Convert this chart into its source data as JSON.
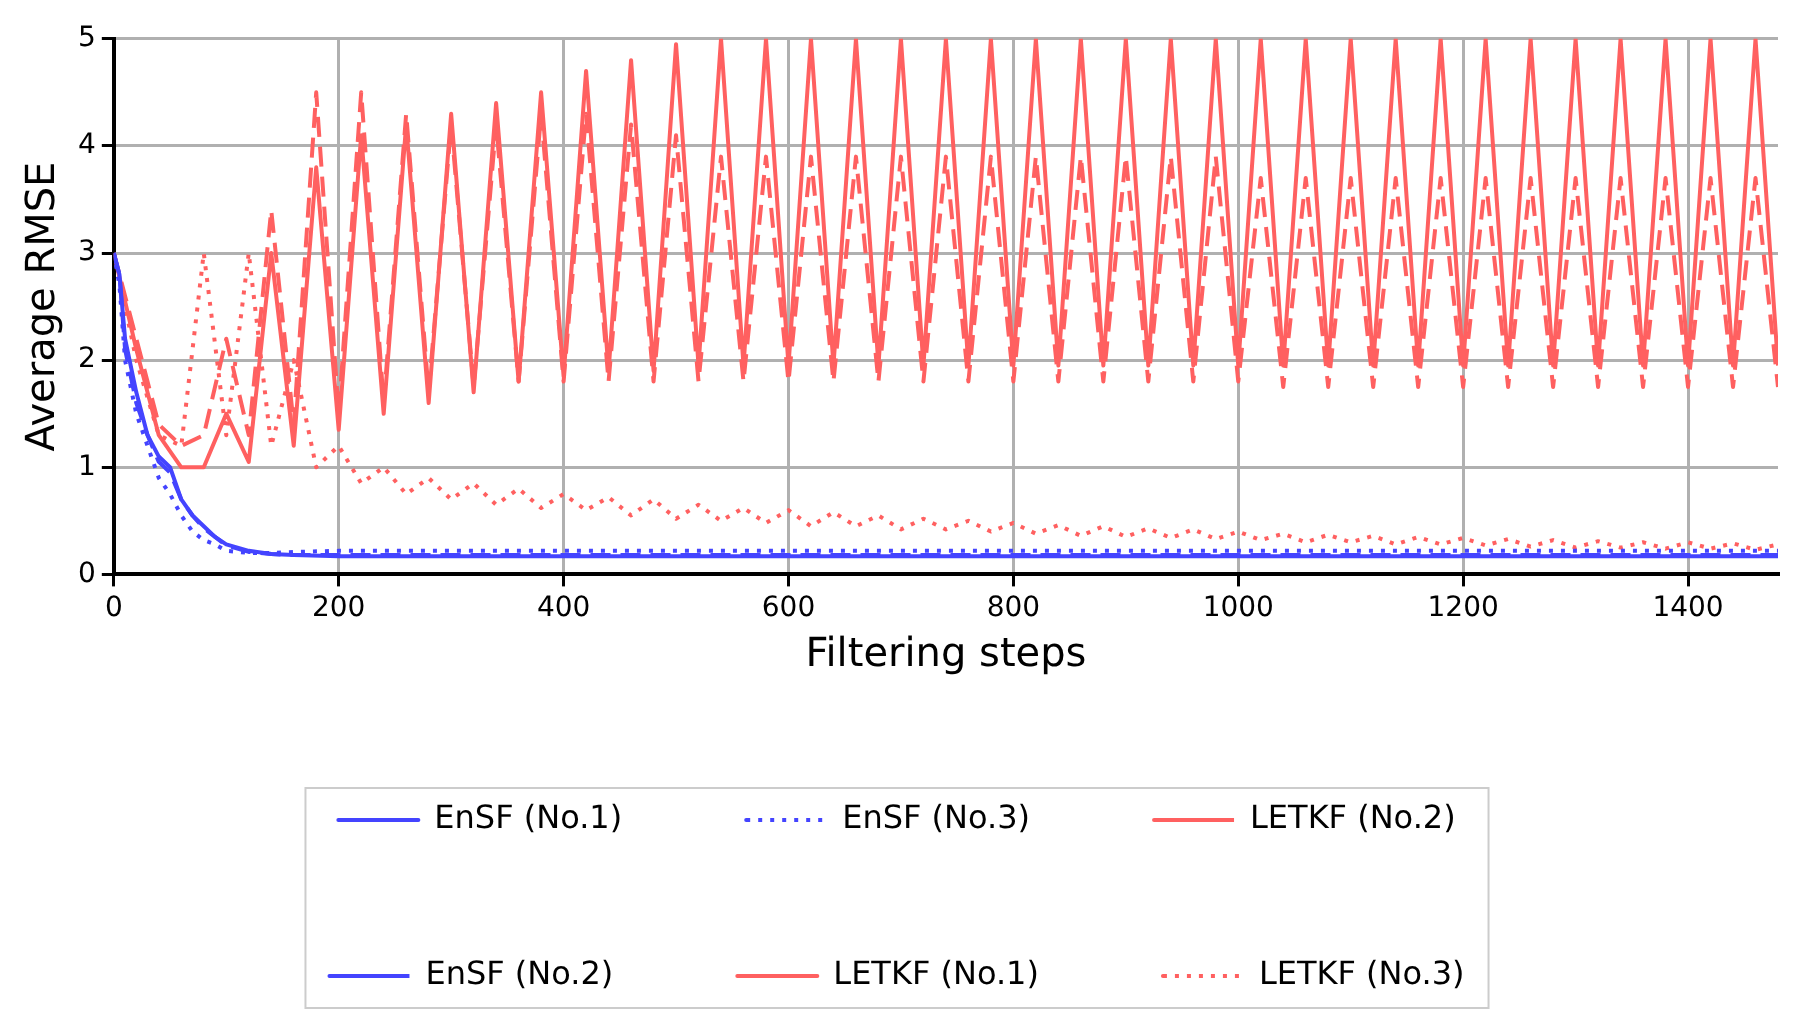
{
  "chart_data": {
    "type": "line",
    "xlabel": "Filtering steps",
    "ylabel": "Average RMSE",
    "x": [
      0,
      20,
      40,
      60,
      80,
      100,
      120,
      140,
      160,
      180,
      200,
      220,
      240,
      260,
      280,
      300,
      320,
      340,
      360,
      380,
      400,
      420,
      440,
      460,
      480,
      500,
      520,
      540,
      560,
      580,
      600,
      620,
      640,
      660,
      680,
      700,
      720,
      740,
      760,
      780,
      800,
      820,
      840,
      860,
      880,
      900,
      920,
      940,
      960,
      980,
      1000,
      1020,
      1040,
      1060,
      1080,
      1100,
      1120,
      1140,
      1160,
      1180,
      1200,
      1220,
      1240,
      1260,
      1280,
      1300,
      1320,
      1340,
      1360,
      1380,
      1400,
      1420,
      1440,
      1460,
      1480
    ],
    "xlim": [
      0,
      1480
    ],
    "xticks": [
      0,
      200,
      400,
      600,
      800,
      1000,
      1200,
      1400
    ],
    "ylim": [
      0,
      5
    ],
    "yticks": [
      0,
      1,
      2,
      3,
      4,
      5
    ],
    "grid": true,
    "legend": "bottom",
    "marker": "none",
    "series": [
      {
        "name": "EnSF (No.1)",
        "color": "#4444ff",
        "line_style": "solid",
        "x": [
          0,
          5,
          10,
          20,
          30,
          40,
          50,
          60,
          70,
          80,
          90,
          100,
          120,
          140,
          160,
          200,
          300,
          400,
          500,
          600,
          700,
          800,
          900,
          1000,
          1100,
          1200,
          1300,
          1400,
          1480
        ],
        "values": [
          3.0,
          2.8,
          2.2,
          1.7,
          1.3,
          1.1,
          1.0,
          0.7,
          0.55,
          0.45,
          0.35,
          0.28,
          0.22,
          0.19,
          0.18,
          0.17,
          0.17,
          0.17,
          0.17,
          0.17,
          0.17,
          0.17,
          0.17,
          0.17,
          0.17,
          0.17,
          0.17,
          0.17,
          0.17
        ]
      },
      {
        "name": "EnSF (No.2)",
        "color": "#4444ff",
        "line_style": "dashed",
        "x": [
          0,
          5,
          10,
          20,
          30,
          40,
          50,
          60,
          70,
          80,
          90,
          100,
          120,
          140,
          160,
          200,
          300,
          400,
          500,
          600,
          700,
          800,
          900,
          1000,
          1100,
          1200,
          1300,
          1400,
          1480
        ],
        "values": [
          3.0,
          2.8,
          2.1,
          1.6,
          1.3,
          1.05,
          0.95,
          0.7,
          0.55,
          0.43,
          0.35,
          0.27,
          0.21,
          0.19,
          0.18,
          0.18,
          0.18,
          0.18,
          0.18,
          0.18,
          0.18,
          0.18,
          0.18,
          0.18,
          0.18,
          0.18,
          0.18,
          0.18,
          0.18
        ]
      },
      {
        "name": "EnSF (No.3)",
        "color": "#4444ff",
        "line_style": "dotted",
        "x": [
          0,
          5,
          10,
          20,
          30,
          40,
          50,
          60,
          70,
          80,
          90,
          100,
          120,
          140,
          160,
          200,
          300,
          400,
          500,
          600,
          700,
          800,
          900,
          1000,
          1100,
          1200,
          1300,
          1400,
          1480
        ],
        "values": [
          3.0,
          2.7,
          2.0,
          1.5,
          1.2,
          0.9,
          0.75,
          0.55,
          0.4,
          0.32,
          0.28,
          0.22,
          0.2,
          0.2,
          0.21,
          0.22,
          0.22,
          0.22,
          0.22,
          0.22,
          0.22,
          0.22,
          0.22,
          0.22,
          0.22,
          0.22,
          0.22,
          0.22,
          0.22
        ]
      },
      {
        "name": "LETKF (No.1)",
        "color": "#ff6060",
        "line_style": "solid",
        "values": [
          3.0,
          2.1,
          1.3,
          1.0,
          1.0,
          1.5,
          1.05,
          3.0,
          1.2,
          3.8,
          1.35,
          4.1,
          1.5,
          4.2,
          1.6,
          4.3,
          1.7,
          4.4,
          1.8,
          4.5,
          1.85,
          4.7,
          1.9,
          4.8,
          1.9,
          4.95,
          1.95,
          5,
          1.95,
          5,
          1.95,
          5,
          1.95,
          5,
          1.95,
          5,
          1.95,
          5,
          1.95,
          5,
          1.95,
          5,
          1.95,
          5,
          1.95,
          5,
          1.95,
          5,
          1.95,
          5,
          1.95,
          5,
          1.95,
          5,
          1.95,
          5,
          1.95,
          5,
          1.95,
          5,
          1.95,
          5,
          1.95,
          5,
          1.95,
          5,
          1.95,
          5,
          1.95,
          5,
          1.95,
          5,
          1.95,
          5,
          1.95
        ]
      },
      {
        "name": "LETKF (No.2)",
        "color": "#ff6060",
        "line_style": "dashed",
        "values": [
          3.0,
          2.2,
          1.4,
          1.2,
          1.3,
          2.2,
          1.3,
          3.4,
          1.4,
          4.5,
          1.5,
          4.5,
          1.6,
          4.3,
          1.7,
          4.2,
          1.75,
          4.2,
          1.8,
          4.3,
          1.8,
          4.3,
          1.8,
          4.2,
          1.8,
          4.1,
          1.8,
          3.9,
          1.8,
          3.9,
          1.8,
          3.9,
          1.8,
          3.9,
          1.8,
          3.9,
          1.8,
          3.9,
          1.8,
          3.9,
          1.8,
          3.9,
          1.8,
          3.9,
          1.8,
          3.9,
          1.8,
          3.9,
          1.8,
          3.9,
          1.8,
          3.7,
          1.75,
          3.7,
          1.75,
          3.7,
          1.75,
          3.7,
          1.75,
          3.7,
          1.75,
          3.7,
          1.75,
          3.7,
          1.75,
          3.7,
          1.75,
          3.7,
          1.75,
          3.7,
          1.75,
          3.7,
          1.75,
          3.7,
          1.75
        ]
      },
      {
        "name": "LETKF (No.3)",
        "color": "#ff6060",
        "line_style": "dotted",
        "values": [
          3.0,
          2.0,
          1.3,
          1.2,
          3.0,
          1.3,
          3.0,
          1.2,
          2.0,
          1.0,
          1.2,
          0.85,
          1.0,
          0.75,
          0.9,
          0.7,
          0.85,
          0.65,
          0.8,
          0.62,
          0.75,
          0.6,
          0.72,
          0.55,
          0.7,
          0.52,
          0.65,
          0.5,
          0.62,
          0.48,
          0.6,
          0.45,
          0.58,
          0.45,
          0.55,
          0.42,
          0.52,
          0.42,
          0.5,
          0.4,
          0.48,
          0.38,
          0.46,
          0.36,
          0.45,
          0.35,
          0.43,
          0.34,
          0.42,
          0.33,
          0.4,
          0.32,
          0.38,
          0.3,
          0.37,
          0.3,
          0.36,
          0.28,
          0.35,
          0.28,
          0.34,
          0.27,
          0.33,
          0.26,
          0.32,
          0.25,
          0.31,
          0.25,
          0.3,
          0.24,
          0.3,
          0.24,
          0.29,
          0.23,
          0.28
        ]
      }
    ]
  }
}
